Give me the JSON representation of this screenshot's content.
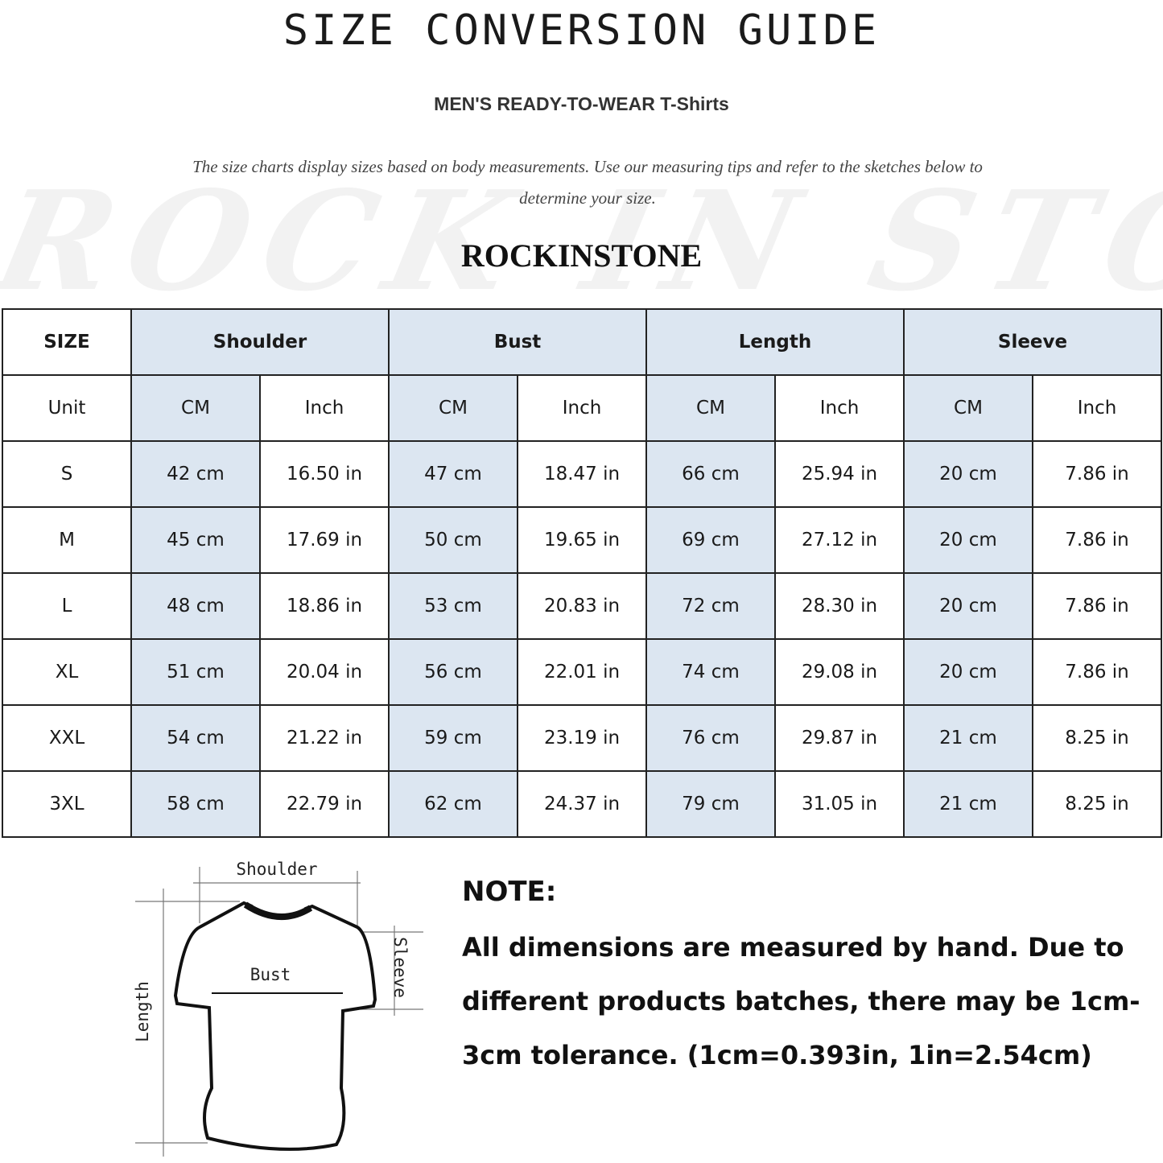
{
  "header": {
    "title": "SIZE CONVERSION GUIDE",
    "subtitle": "MEN'S READY-TO-WEAR T-Shirts",
    "description": "The size charts display sizes based on body measurements. Use our measuring tips and refer to the sketches below to determine your size.",
    "watermark": "ROCK IN STONE",
    "brand": "ROCKINSTONE"
  },
  "table": {
    "size_label": "SIZE",
    "unit_label": "Unit",
    "groups": [
      "Shoulder",
      "Bust",
      "Length",
      "Sleeve"
    ],
    "units": [
      "CM",
      "Inch"
    ],
    "header_fill": "#dce6f1",
    "rows": [
      {
        "size": "S",
        "values": [
          "42 cm",
          "16.50 in",
          "47 cm",
          "18.47  in",
          "66 cm",
          "25.94  in",
          "20 cm",
          "7.86  in"
        ]
      },
      {
        "size": "M",
        "values": [
          "45 cm",
          "17.69  in",
          "50 cm",
          "19.65  in",
          "69 cm",
          "27.12  in",
          "20 cm",
          "7.86  in"
        ]
      },
      {
        "size": "L",
        "values": [
          "48 cm",
          "18.86  in",
          "53 cm",
          "20.83  in",
          "72 cm",
          "28.30  in",
          "20 cm",
          "7.86  in"
        ]
      },
      {
        "size": "XL",
        "values": [
          "51 cm",
          "20.04  in",
          "56 cm",
          "22.01  in",
          "74 cm",
          "29.08  in",
          "20 cm",
          "7.86  in"
        ]
      },
      {
        "size": "XXL",
        "values": [
          "54 cm",
          "21.22  in",
          "59 cm",
          "23.19  in",
          "76 cm",
          "29.87  in",
          "21 cm",
          "8.25  in"
        ]
      },
      {
        "size": "3XL",
        "values": [
          "58 cm",
          "22.79  in",
          "62 cm",
          "24.37  in",
          "79 cm",
          "31.05  in",
          "21 cm",
          "8.25  in"
        ]
      }
    ]
  },
  "diagram": {
    "shoulder": "Shoulder",
    "bust": "Bust",
    "length": "Length",
    "sleeve": "Sleeve"
  },
  "note": {
    "title": "NOTE:",
    "body": "All dimensions are measured by hand. Due to different products batches, there may be 1cm-3cm tolerance. (1cm=0.393in, 1in=2.54cm)"
  }
}
